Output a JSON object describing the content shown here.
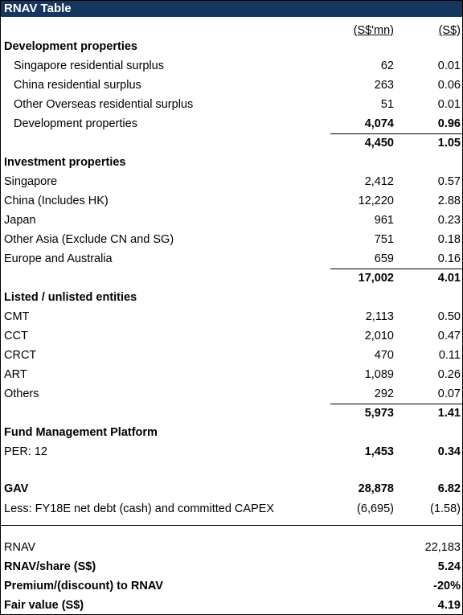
{
  "header": {
    "title": "RNAV Table",
    "columns": [
      "(S$'mn)",
      "(S$)"
    ]
  },
  "sections": [
    {
      "title": "Development properties",
      "rows": [
        {
          "label": "Singapore residential surplus",
          "mn": "62",
          "sgd": "0.01"
        },
        {
          "label": "China residential surplus",
          "mn": "263",
          "sgd": "0.06"
        },
        {
          "label": "Other Overseas residential surplus",
          "mn": "51",
          "sgd": "0.01"
        },
        {
          "label": "Development properties",
          "mn": "4,074",
          "sgd": "0.96"
        }
      ],
      "total": {
        "mn": "4,450",
        "sgd": "1.05"
      }
    },
    {
      "title": "Investment properties",
      "rows": [
        {
          "label": "Singapore",
          "mn": "2,412",
          "sgd": "0.57"
        },
        {
          "label": "China (Includes HK)",
          "mn": "12,220",
          "sgd": "2.88"
        },
        {
          "label": "Japan",
          "mn": "961",
          "sgd": "0.23"
        },
        {
          "label": "Other Asia (Exclude CN and SG)",
          "mn": "751",
          "sgd": "0.18"
        },
        {
          "label": "Europe and Australia",
          "mn": "659",
          "sgd": "0.16"
        }
      ],
      "total": {
        "mn": "17,002",
        "sgd": "4.01"
      }
    },
    {
      "title": "Listed / unlisted entities",
      "rows": [
        {
          "label": "CMT",
          "mn": "2,113",
          "sgd": "0.50"
        },
        {
          "label": "CCT",
          "mn": "2,010",
          "sgd": "0.47"
        },
        {
          "label": "CRCT",
          "mn": "470",
          "sgd": "0.11"
        },
        {
          "label": "ART",
          "mn": "1,089",
          "sgd": "0.26"
        },
        {
          "label": "Others",
          "mn": "292",
          "sgd": "0.07"
        }
      ],
      "total": {
        "mn": "5,973",
        "sgd": "1.41"
      }
    },
    {
      "title": "Fund Management Platform",
      "rows": [
        {
          "label": "PER: 12",
          "mn": "1,453",
          "sgd": "0.34"
        }
      ]
    }
  ],
  "gav": {
    "label": "GAV",
    "mn": "28,878",
    "sgd": "6.82"
  },
  "less": {
    "label": "Less: FY18E net debt (cash) and committed CAPEX",
    "mn": "(6,695)",
    "sgd": "(1.58)"
  },
  "rnav": [
    {
      "label": "RNAV",
      "value": "22,183"
    },
    {
      "label": "RNAV/share (S$)",
      "value": "5.24"
    },
    {
      "label": "Premium/(discount) to RNAV",
      "value": "-20%"
    },
    {
      "label": "Fair value (S$)",
      "value": "4.19"
    }
  ]
}
